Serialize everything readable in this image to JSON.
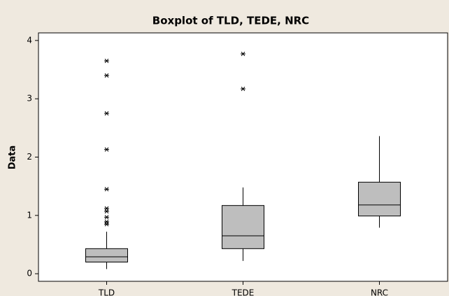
{
  "chart_data": {
    "type": "box",
    "title": "Boxplot of TLD, TEDE, NRC",
    "y_label": "Data",
    "categories": [
      "TLD",
      "TEDE",
      "NRC"
    ],
    "color": "#bebebe",
    "boxes": [
      {
        "whisker_low": 0.08,
        "q1": 0.2,
        "median": 0.29,
        "q3": 0.43,
        "whisker_high": 0.72,
        "outliers": [
          0.85,
          0.89,
          0.97,
          1.07,
          1.12,
          1.45,
          2.13,
          2.75,
          3.4,
          3.65
        ]
      },
      {
        "whisker_low": 0.22,
        "q1": 0.43,
        "median": 0.65,
        "q3": 1.17,
        "whisker_high": 1.48,
        "outliers": [
          3.17,
          3.77
        ]
      },
      {
        "whisker_low": 0.79,
        "q1": 0.99,
        "median": 1.18,
        "q3": 1.57,
        "whisker_high": 2.36,
        "outliers": []
      }
    ],
    "ylim": [
      -0.13,
      4.13
    ],
    "yticks": [
      0,
      1,
      2,
      3,
      4
    ]
  }
}
